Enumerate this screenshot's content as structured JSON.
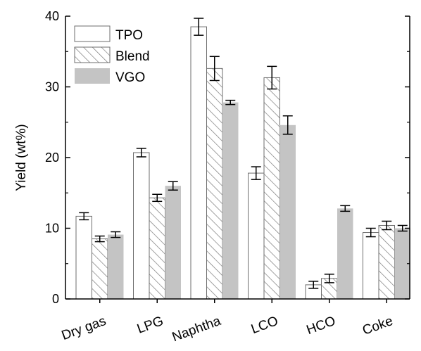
{
  "chart_data": {
    "type": "bar",
    "categories": [
      "Dry gas",
      "LPG",
      "Naphtha",
      "LCO",
      "HCO",
      "Coke"
    ],
    "series": [
      {
        "name": "TPO",
        "values": [
          11.7,
          20.7,
          38.5,
          17.8,
          2.0,
          9.4
        ],
        "errors": [
          0.5,
          0.6,
          1.2,
          0.9,
          0.5,
          0.6
        ],
        "style": "open"
      },
      {
        "name": "Blend",
        "values": [
          8.5,
          14.3,
          32.6,
          31.3,
          2.9,
          10.4
        ],
        "errors": [
          0.4,
          0.5,
          1.7,
          1.6,
          0.6,
          0.6
        ],
        "style": "hatched"
      },
      {
        "name": "VGO",
        "values": [
          9.1,
          16.0,
          27.8,
          24.6,
          12.8,
          10.0
        ],
        "errors": [
          0.4,
          0.6,
          0.3,
          1.3,
          0.4,
          0.4
        ],
        "style": "filled"
      }
    ],
    "ylabel": "Yield (wt%)",
    "xlabel": "",
    "ylim": [
      0,
      40
    ],
    "yticks": [
      "0",
      "10",
      "20",
      "30",
      "40"
    ],
    "grid": false,
    "legend_position": "top-left",
    "colors": {
      "axis": "#000000",
      "open_fill": "#ffffff",
      "filled": "#c4c4c4",
      "hatch": "#7a7a7a",
      "bar_edge": "#6e6e6e"
    }
  }
}
